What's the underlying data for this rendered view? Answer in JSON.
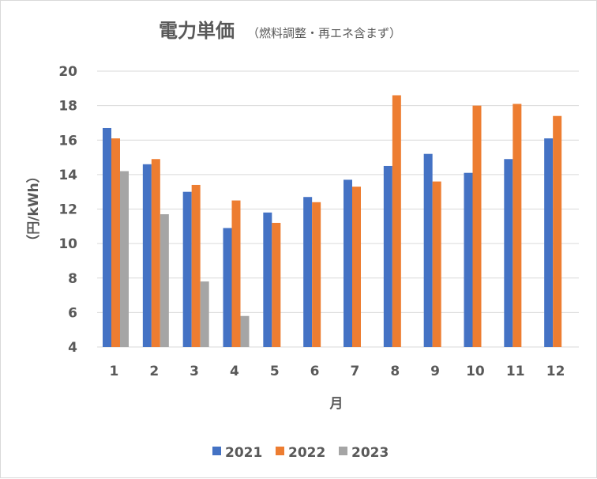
{
  "chart_data": {
    "type": "bar",
    "title": "電力単価",
    "subtitle": "（燃料調整・再エネ含まず）",
    "xlabel": "月",
    "ylabel": "（円/kWh）",
    "ylim": [
      4,
      20
    ],
    "yticks": [
      4,
      6,
      8,
      10,
      12,
      14,
      16,
      18,
      20
    ],
    "grid": true,
    "legend_position": "bottom",
    "categories": [
      "1",
      "2",
      "3",
      "4",
      "5",
      "6",
      "7",
      "8",
      "9",
      "10",
      "11",
      "12"
    ],
    "series": [
      {
        "name": "2021",
        "color": "#4472c4",
        "values": [
          16.7,
          14.6,
          13.0,
          10.9,
          11.8,
          12.7,
          13.7,
          14.5,
          15.2,
          14.1,
          14.9,
          16.1
        ]
      },
      {
        "name": "2022",
        "color": "#ed7d31",
        "values": [
          16.1,
          14.9,
          13.4,
          12.5,
          11.2,
          12.4,
          13.3,
          18.6,
          13.6,
          18.0,
          18.1,
          17.4
        ]
      },
      {
        "name": "2023",
        "color": "#a5a5a5",
        "values": [
          14.2,
          11.7,
          7.8,
          5.8,
          null,
          null,
          null,
          null,
          null,
          null,
          null,
          null
        ]
      }
    ]
  }
}
